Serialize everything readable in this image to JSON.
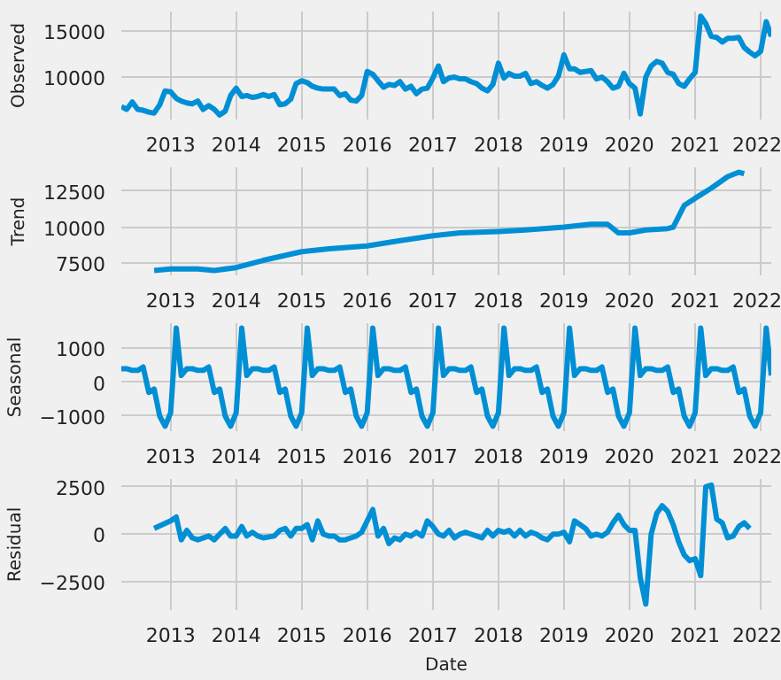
{
  "chart_data": [
    {
      "type": "line",
      "ylabel": "Observed",
      "grid": true,
      "xlim": [
        "2012-04",
        "2022-03"
      ],
      "xticks": [
        "2013",
        "2014",
        "2015",
        "2016",
        "2017",
        "2018",
        "2019",
        "2020",
        "2021",
        "2022"
      ],
      "ylim": [
        5400,
        17100
      ],
      "yticks": [
        10000,
        15000
      ],
      "series": [
        {
          "color": "#008fd5",
          "x": [
            "2012-04",
            "2012-05",
            "2012-06",
            "2012-07",
            "2012-08",
            "2012-09",
            "2012-10",
            "2012-11",
            "2012-12",
            "2013-01",
            "2013-02",
            "2013-03",
            "2013-04",
            "2013-05",
            "2013-06",
            "2013-07",
            "2013-08",
            "2013-09",
            "2013-10",
            "2013-11",
            "2013-12",
            "2014-01",
            "2014-02",
            "2014-03",
            "2014-04",
            "2014-05",
            "2014-06",
            "2014-07",
            "2014-08",
            "2014-09",
            "2014-10",
            "2014-11",
            "2014-12",
            "2015-01",
            "2015-02",
            "2015-03",
            "2015-04",
            "2015-05",
            "2015-06",
            "2015-07",
            "2015-08",
            "2015-09",
            "2015-10",
            "2015-11",
            "2015-12",
            "2016-01",
            "2016-02",
            "2016-03",
            "2016-04",
            "2016-05",
            "2016-06",
            "2016-07",
            "2016-08",
            "2016-09",
            "2016-10",
            "2016-11",
            "2016-12",
            "2017-01",
            "2017-02",
            "2017-03",
            "2017-04",
            "2017-05",
            "2017-06",
            "2017-07",
            "2017-08",
            "2017-09",
            "2017-10",
            "2017-11",
            "2017-12",
            "2018-01",
            "2018-02",
            "2018-03",
            "2018-04",
            "2018-05",
            "2018-06",
            "2018-07",
            "2018-08",
            "2018-09",
            "2018-10",
            "2018-11",
            "2018-12",
            "2019-01",
            "2019-02",
            "2019-03",
            "2019-04",
            "2019-05",
            "2019-06",
            "2019-07",
            "2019-08",
            "2019-09",
            "2019-10",
            "2019-11",
            "2019-12",
            "2020-01",
            "2020-02",
            "2020-03",
            "2020-04",
            "2020-05",
            "2020-06",
            "2020-07",
            "2020-08",
            "2020-09",
            "2020-10",
            "2020-11",
            "2020-12",
            "2021-01",
            "2021-02",
            "2021-03",
            "2021-04",
            "2021-05",
            "2021-06",
            "2021-07",
            "2021-08",
            "2021-09",
            "2021-10",
            "2021-11",
            "2021-12",
            "2022-01",
            "2022-02",
            "2022-03"
          ],
          "values": [
            6800,
            6500,
            7300,
            6500,
            6400,
            6200,
            6100,
            7000,
            8500,
            8400,
            7700,
            7400,
            7200,
            7100,
            7400,
            6500,
            6900,
            6500,
            5900,
            6300,
            8000,
            8800,
            7900,
            8000,
            7800,
            7900,
            8100,
            7900,
            8100,
            7000,
            7100,
            7600,
            9300,
            9600,
            9400,
            9000,
            8800,
            8700,
            8700,
            8700,
            8000,
            8200,
            7500,
            7400,
            8000,
            10600,
            10300,
            9600,
            8900,
            9200,
            9100,
            9500,
            8700,
            9000,
            8200,
            8700,
            8800,
            9900,
            11200,
            9500,
            9900,
            10000,
            9800,
            9800,
            9500,
            9300,
            8800,
            8500,
            9200,
            11500,
            9900,
            10400,
            10100,
            10100,
            10400,
            9300,
            9500,
            9100,
            8800,
            9200,
            10100,
            12400,
            10900,
            10900,
            10500,
            10600,
            10700,
            9800,
            10000,
            9500,
            8800,
            9000,
            10400,
            9300,
            8800,
            6000,
            10000,
            11200,
            11700,
            11500,
            10500,
            10300,
            9300,
            9000,
            9800,
            10500,
            16600,
            15800,
            14400,
            14300,
            13800,
            14200,
            14200,
            14300,
            13200,
            12700,
            12300,
            12800,
            16000,
            14400
          ]
        }
      ]
    },
    {
      "type": "line",
      "ylabel": "Trend",
      "grid": true,
      "xlim": [
        "2012-04",
        "2022-03"
      ],
      "xticks": [
        "2013",
        "2014",
        "2015",
        "2016",
        "2017",
        "2018",
        "2019",
        "2020",
        "2021",
        "2022"
      ],
      "ylim": [
        6660,
        14140
      ],
      "yticks": [
        7500,
        10000,
        12500
      ],
      "series": [
        {
          "color": "#008fd5",
          "x": [
            "2012-10",
            "2013-01",
            "2013-06",
            "2013-09",
            "2014-01",
            "2014-06",
            "2015-01",
            "2015-06",
            "2016-01",
            "2016-06",
            "2017-01",
            "2017-06",
            "2018-01",
            "2018-06",
            "2019-01",
            "2019-06",
            "2019-09",
            "2019-11",
            "2020-01",
            "2020-04",
            "2020-08",
            "2020-09",
            "2020-11",
            "2021-01",
            "2021-04",
            "2021-07",
            "2021-09",
            "2021-10"
          ],
          "values": [
            7000,
            7100,
            7100,
            7000,
            7200,
            7700,
            8300,
            8500,
            8700,
            9000,
            9400,
            9600,
            9700,
            9800,
            10000,
            10200,
            10200,
            9600,
            9600,
            9800,
            9900,
            10000,
            11500,
            12000,
            12700,
            13500,
            13800,
            13700
          ]
        }
      ]
    },
    {
      "type": "line",
      "ylabel": "Seasonal",
      "grid": true,
      "xlim": [
        "2012-04",
        "2022-03"
      ],
      "xticks": [
        "2013",
        "2014",
        "2015",
        "2016",
        "2017",
        "2018",
        "2019",
        "2020",
        "2021",
        "2022"
      ],
      "ylim": [
        -1445,
        1745
      ],
      "yticks": [
        {
          "value": -1000,
          "label": "−1000"
        },
        0,
        1000
      ],
      "series": [
        {
          "color": "#008fd5",
          "x": [
            "2012-04",
            "2012-05",
            "2012-06",
            "2012-07",
            "2012-08",
            "2012-09",
            "2012-10",
            "2012-11",
            "2012-12",
            "2013-01",
            "2013-02",
            "2013-03",
            "2013-04",
            "2013-05",
            "2013-06",
            "2013-07",
            "2013-08",
            "2013-09",
            "2013-10",
            "2013-11",
            "2013-12",
            "2014-01",
            "2014-02",
            "2014-03",
            "2014-04",
            "2014-05",
            "2014-06",
            "2014-07",
            "2014-08",
            "2014-09",
            "2014-10",
            "2014-11",
            "2014-12",
            "2015-01",
            "2015-02",
            "2015-03",
            "2015-04",
            "2015-05",
            "2015-06",
            "2015-07",
            "2015-08",
            "2015-09",
            "2015-10",
            "2015-11",
            "2015-12",
            "2016-01",
            "2016-02",
            "2016-03",
            "2016-04",
            "2016-05",
            "2016-06",
            "2016-07",
            "2016-08",
            "2016-09",
            "2016-10",
            "2016-11",
            "2016-12",
            "2017-01",
            "2017-02",
            "2017-03",
            "2017-04",
            "2017-05",
            "2017-06",
            "2017-07",
            "2017-08",
            "2017-09",
            "2017-10",
            "2017-11",
            "2017-12",
            "2018-01",
            "2018-02",
            "2018-03",
            "2018-04",
            "2018-05",
            "2018-06",
            "2018-07",
            "2018-08",
            "2018-09",
            "2018-10",
            "2018-11",
            "2018-12",
            "2019-01",
            "2019-02",
            "2019-03",
            "2019-04",
            "2019-05",
            "2019-06",
            "2019-07",
            "2019-08",
            "2019-09",
            "2019-10",
            "2019-11",
            "2019-12",
            "2020-01",
            "2020-02",
            "2020-03",
            "2020-04",
            "2020-05",
            "2020-06",
            "2020-07",
            "2020-08",
            "2020-09",
            "2020-10",
            "2020-11",
            "2020-12",
            "2021-01",
            "2021-02",
            "2021-03",
            "2021-04",
            "2021-05",
            "2021-06",
            "2021-07",
            "2021-08",
            "2021-09",
            "2021-10",
            "2021-11",
            "2021-12",
            "2022-01",
            "2022-02",
            "2022-03"
          ],
          "values": [
            400,
            400,
            350,
            350,
            450,
            -300,
            -200,
            -1000,
            -1300,
            -900,
            1600,
            200,
            400,
            400,
            350,
            350,
            450,
            -300,
            -200,
            -1000,
            -1300,
            -900,
            1600,
            200,
            400,
            400,
            350,
            350,
            450,
            -300,
            -200,
            -1000,
            -1300,
            -900,
            1600,
            200,
            400,
            400,
            350,
            350,
            450,
            -300,
            -200,
            -1000,
            -1300,
            -900,
            1600,
            200,
            400,
            400,
            350,
            350,
            450,
            -300,
            -200,
            -1000,
            -1300,
            -900,
            1600,
            200,
            400,
            400,
            350,
            350,
            450,
            -300,
            -200,
            -1000,
            -1300,
            -900,
            1600,
            200,
            400,
            400,
            350,
            350,
            450,
            -300,
            -200,
            -1000,
            -1300,
            -900,
            1600,
            200,
            400,
            400,
            350,
            350,
            450,
            -300,
            -200,
            -1000,
            -1300,
            -900,
            1600,
            200,
            400,
            400,
            350,
            350,
            450,
            -300,
            -200,
            -1000,
            -1300,
            -900,
            1600,
            200,
            400,
            400,
            350,
            350,
            450,
            -300,
            -200,
            -1000,
            -1300,
            -900,
            1600,
            200
          ]
        }
      ]
    },
    {
      "type": "line",
      "ylabel": "Residual",
      "xlabel": "Date",
      "grid": true,
      "xlim": [
        "2012-04",
        "2022-03"
      ],
      "xticks": [
        "2013",
        "2014",
        "2015",
        "2016",
        "2017",
        "2018",
        "2019",
        "2020",
        "2021",
        "2022"
      ],
      "ylim": [
        -4015,
        2915
      ],
      "yticks": [
        {
          "value": -2500,
          "label": "−2500"
        },
        0,
        2500
      ],
      "series": [
        {
          "color": "#008fd5",
          "x": [
            "2012-10",
            "2013-01",
            "2013-02",
            "2013-03",
            "2013-04",
            "2013-05",
            "2013-06",
            "2013-08",
            "2013-09",
            "2013-10",
            "2013-11",
            "2013-12",
            "2014-01",
            "2014-02",
            "2014-03",
            "2014-04",
            "2014-05",
            "2014-06",
            "2014-08",
            "2014-09",
            "2014-10",
            "2014-11",
            "2014-12",
            "2015-01",
            "2015-02",
            "2015-03",
            "2015-04",
            "2015-05",
            "2015-06",
            "2015-07",
            "2015-08",
            "2015-09",
            "2015-10",
            "2015-11",
            "2015-12",
            "2016-02",
            "2016-03",
            "2016-04",
            "2016-05",
            "2016-06",
            "2016-07",
            "2016-08",
            "2016-09",
            "2016-10",
            "2016-11",
            "2016-12",
            "2017-01",
            "2017-02",
            "2017-03",
            "2017-04",
            "2017-05",
            "2017-06",
            "2017-07",
            "2017-08",
            "2017-09",
            "2017-10",
            "2017-11",
            "2017-12",
            "2018-01",
            "2018-02",
            "2018-03",
            "2018-04",
            "2018-05",
            "2018-06",
            "2018-07",
            "2018-08",
            "2018-09",
            "2018-10",
            "2018-11",
            "2018-12",
            "2019-01",
            "2019-02",
            "2019-03",
            "2019-04",
            "2019-05",
            "2019-06",
            "2019-07",
            "2019-08",
            "2019-09",
            "2019-10",
            "2019-11",
            "2019-12",
            "2020-01",
            "2020-02",
            "2020-03",
            "2020-04",
            "2020-05",
            "2020-06",
            "2020-07",
            "2020-08",
            "2020-09",
            "2020-10",
            "2020-11",
            "2020-12",
            "2021-01",
            "2021-02",
            "2021-03",
            "2021-04",
            "2021-05",
            "2021-06",
            "2021-07",
            "2021-08",
            "2021-09",
            "2021-10",
            "2021-11"
          ],
          "values": [
            300,
            700,
            900,
            -300,
            200,
            -200,
            -300,
            -100,
            -300,
            0,
            300,
            -100,
            -100,
            400,
            -100,
            100,
            -100,
            -200,
            -100,
            200,
            300,
            -100,
            300,
            300,
            500,
            -300,
            700,
            0,
            -100,
            -100,
            -300,
            -300,
            -200,
            -100,
            100,
            1300,
            -100,
            300,
            -500,
            -200,
            -300,
            0,
            -100,
            100,
            -100,
            700,
            400,
            0,
            -100,
            200,
            -200,
            0,
            100,
            0,
            -100,
            -200,
            200,
            -100,
            200,
            100,
            200,
            -100,
            200,
            -100,
            100,
            0,
            -200,
            -300,
            0,
            0,
            100,
            -400,
            700,
            500,
            300,
            -100,
            0,
            -100,
            100,
            600,
            1000,
            500,
            200,
            200,
            -2300,
            -3700,
            0,
            1100,
            1500,
            1200,
            500,
            -400,
            -1100,
            -1400,
            -1300,
            -2200,
            2500,
            2600,
            800,
            600,
            -200,
            -100,
            400,
            600,
            300
          ]
        }
      ]
    }
  ]
}
